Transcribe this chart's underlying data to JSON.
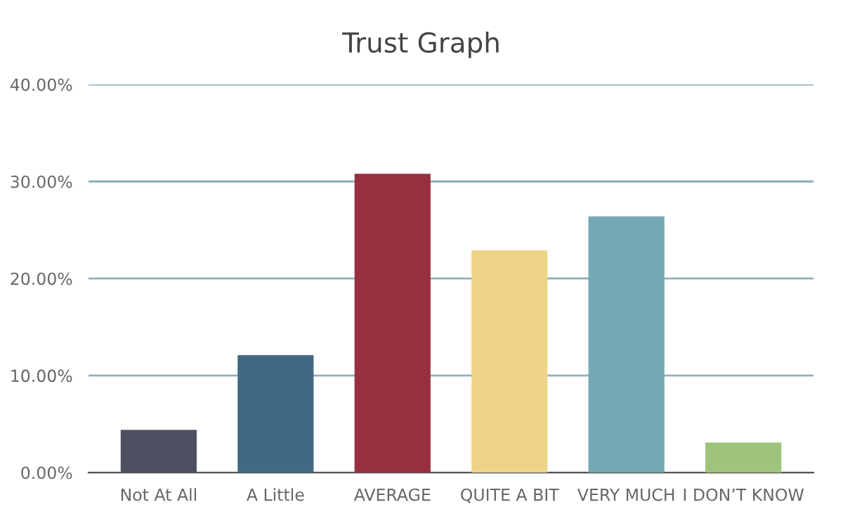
{
  "chart_data": {
    "type": "bar",
    "title": "Trust Graph",
    "categories": [
      "Not At All",
      "A Little",
      "AVERAGE",
      "QUITE A BIT",
      "VERY MUCH",
      "I DON’T KNOW"
    ],
    "values": [
      4.4,
      12.1,
      30.8,
      22.9,
      26.4,
      3.1
    ],
    "colors": [
      "#4d5060",
      "#416a82",
      "#962f40",
      "#eed487",
      "#74a8b4",
      "#9dc47a"
    ],
    "ylim": [
      0,
      40
    ],
    "yticks": [
      {
        "value": 0,
        "label": "0.00%"
      },
      {
        "value": 10,
        "label": "10.00%"
      },
      {
        "value": 20,
        "label": "20.00%"
      },
      {
        "value": 30,
        "label": "30.00%"
      },
      {
        "value": 40,
        "label": "40.00%"
      }
    ],
    "grid": "y",
    "legend": false
  }
}
